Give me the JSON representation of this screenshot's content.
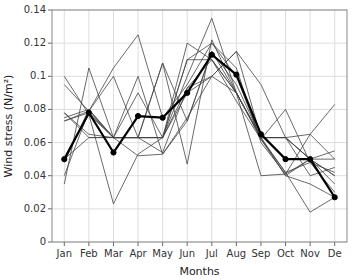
{
  "chart_data": {
    "type": "line",
    "xlabel": "Months",
    "ylabel": "Wind stress (N/m²)",
    "categories": [
      "Jan",
      "Feb",
      "Mar",
      "Apr",
      "May",
      "Jun",
      "Jul",
      "Aug",
      "Sep",
      "Oct",
      "Nov",
      "De"
    ],
    "series": [
      {
        "color": "#444444",
        "values": [
          0.073,
          0.079,
          0.063,
          0.052,
          0.053,
          0.075,
          0.1,
          0.115,
          0.095,
          0.063,
          0.05,
          0.04
        ]
      },
      {
        "color": "#444444",
        "values": [
          0.095,
          0.079,
          0.105,
          0.125,
          0.075,
          0.095,
          0.12,
          0.105,
          0.06,
          0.041,
          0.05,
          0.035
        ]
      },
      {
        "color": "#444444",
        "values": [
          0.1,
          0.077,
          0.023,
          0.053,
          0.063,
          0.1,
          0.135,
          0.09,
          0.063,
          0.04,
          0.035,
          0.027
        ]
      },
      {
        "color": "#444444",
        "values": [
          0.05,
          0.077,
          0.063,
          0.063,
          0.063,
          0.11,
          0.12,
          0.1,
          0.062,
          0.04,
          0.05,
          0.055
        ]
      },
      {
        "color": "#444444",
        "values": [
          0.04,
          0.079,
          0.1,
          0.063,
          0.054,
          0.093,
          0.11,
          0.085,
          0.062,
          0.08,
          0.048,
          0.03
        ]
      },
      {
        "color": "#444444",
        "values": [
          0.075,
          0.08,
          0.063,
          0.063,
          0.108,
          0.073,
          0.115,
          0.095,
          0.063,
          0.042,
          0.048,
          0.042
        ]
      },
      {
        "color": "#444444",
        "values": [
          0.073,
          0.078,
          0.063,
          0.1,
          0.053,
          0.073,
          0.115,
          0.09,
          0.04,
          0.041,
          0.065,
          0.05
        ]
      },
      {
        "color": "#444444",
        "values": [
          0.078,
          0.065,
          0.063,
          0.063,
          0.063,
          0.09,
          0.1,
          0.115,
          0.063,
          0.063,
          0.05,
          0.04
        ]
      },
      {
        "color": "#444444",
        "values": [
          0.048,
          0.08,
          0.063,
          0.063,
          0.108,
          0.047,
          0.122,
          0.09,
          0.062,
          0.042,
          0.018,
          0.027
        ]
      },
      {
        "color": "#444444",
        "values": [
          0.035,
          0.105,
          0.063,
          0.09,
          0.063,
          0.093,
          0.1,
          0.09,
          0.063,
          0.063,
          0.065,
          0.083
        ]
      },
      {
        "color": "#444444",
        "values": [
          0.078,
          0.063,
          0.063,
          0.063,
          0.063,
          0.12,
          0.11,
          0.09,
          0.063,
          0.063,
          0.05,
          0.05
        ]
      },
      {
        "color": "#444444",
        "values": [
          0.05,
          0.063,
          0.063,
          0.063,
          0.063,
          0.11,
          0.11,
          0.09,
          0.063,
          0.063,
          0.04,
          0.045
        ]
      },
      {
        "color": "#000000",
        "marker": "circle",
        "values": [
          0.05,
          0.078,
          0.054,
          0.076,
          0.075,
          0.09,
          0.113,
          0.101,
          0.065,
          0.05,
          0.05,
          0.027
        ]
      }
    ],
    "ylim": [
      0,
      0.14
    ],
    "yticks": [
      0,
      0.02,
      0.04,
      0.06,
      0.08,
      0.1,
      0.12,
      0.14
    ],
    "grid": true
  }
}
